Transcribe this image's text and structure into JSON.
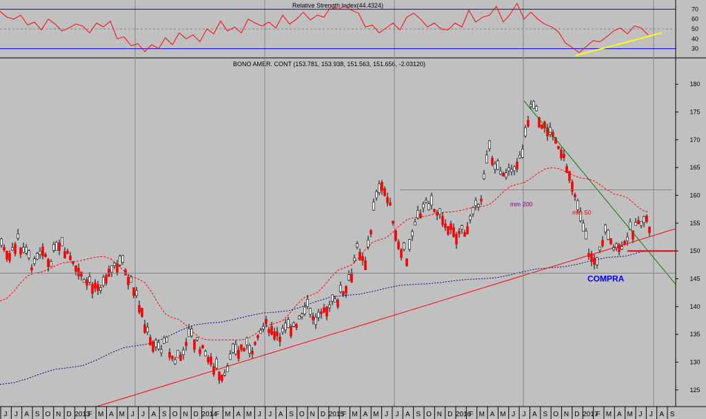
{
  "chart_data": [
    {
      "type": "line",
      "title": "Relative Strength Index(44.4324)",
      "yticks": [
        30,
        40,
        50,
        60,
        70
      ],
      "ylim": [
        22,
        78
      ],
      "reference_lines": [
        30,
        50,
        70
      ],
      "series": [
        {
          "color": "#ff0000",
          "x": [
            0,
            10,
            20,
            30,
            40,
            50,
            60,
            70,
            80,
            90,
            100,
            110,
            120,
            130,
            140,
            150,
            160,
            170,
            180,
            190,
            200,
            210,
            220,
            230,
            240,
            250,
            260,
            270,
            280,
            290,
            300,
            310,
            320,
            330,
            340,
            350,
            360,
            370,
            380,
            390,
            400,
            410,
            420,
            430,
            440,
            450,
            460,
            470,
            480,
            490,
            500,
            510,
            520,
            530,
            540,
            550,
            560,
            570,
            580,
            590,
            600,
            610,
            620,
            630,
            640,
            650,
            660,
            670,
            680,
            690,
            700,
            710,
            720,
            730,
            740,
            750,
            760,
            770,
            780,
            790,
            800,
            810,
            820,
            830,
            840,
            850,
            860,
            870,
            880,
            890,
            900,
            910,
            920,
            930,
            940
          ],
          "values": [
            68,
            62,
            60,
            64,
            54,
            57,
            49,
            60,
            55,
            48,
            51,
            55,
            53,
            46,
            56,
            52,
            58,
            40,
            42,
            33,
            35,
            27,
            34,
            30,
            41,
            34,
            46,
            40,
            44,
            37,
            50,
            45,
            58,
            48,
            52,
            46,
            60,
            56,
            53,
            57,
            51,
            64,
            55,
            60,
            67,
            59,
            64,
            62,
            73,
            70,
            73,
            69,
            66,
            52,
            54,
            46,
            51,
            56,
            49,
            62,
            66,
            60,
            52,
            56,
            50,
            49,
            56,
            52,
            69,
            57,
            62,
            64,
            73,
            57,
            65,
            76,
            60,
            67,
            60,
            55,
            52,
            47,
            36,
            31,
            26,
            32,
            38,
            37,
            42,
            48,
            51,
            45,
            53,
            51,
            44
          ]
        }
      ],
      "annotation_line": {
        "color": "#ffff00",
        "from": [
          835,
          23
        ],
        "to": [
          960,
          46
        ]
      }
    },
    {
      "type": "line",
      "title": "BONO AMER. CONT (153.781, 153.938, 151.563, 151.656, -2.03120)",
      "ylabel": "",
      "ylim": [
        122,
        183
      ],
      "yticks": [
        125,
        130,
        135,
        140,
        145,
        150,
        155,
        160,
        165,
        170,
        175,
        180
      ],
      "xticks": [
        "J",
        "J",
        "A",
        "S",
        "O",
        "N",
        "D",
        "2013",
        "F",
        "M",
        "A",
        "M",
        "J",
        "J",
        "A",
        "S",
        "O",
        "N",
        "D",
        "2014",
        "F",
        "M",
        "A",
        "M",
        "J",
        "J",
        "A",
        "S",
        "O",
        "N",
        "D",
        "2015",
        "F",
        "M",
        "A",
        "M",
        "J",
        "J",
        "A",
        "S",
        "O",
        "N",
        "D",
        "2016",
        "F",
        "M",
        "A",
        "M",
        "J",
        "J",
        "A",
        "S",
        "O",
        "N",
        "D",
        "2017",
        "F",
        "M",
        "A",
        "M",
        "J",
        "J",
        "A",
        "S"
      ],
      "grid": true,
      "series": [
        {
          "name": "price",
          "color": "#000000",
          "up_color": "#ffffff",
          "down_color": "#ff0000",
          "x": [
            0,
            12,
            24,
            36,
            48,
            60,
            72,
            84,
            96,
            108,
            120,
            132,
            144,
            156,
            168,
            180,
            192,
            204,
            216,
            228,
            240,
            252,
            264,
            276,
            288,
            300,
            312,
            324,
            336,
            348,
            360,
            372,
            384,
            396,
            408,
            420,
            432,
            444,
            456,
            468,
            480,
            492,
            504,
            516,
            528,
            540,
            552,
            564,
            576,
            588,
            600,
            612,
            624,
            636,
            648,
            660,
            672,
            684,
            696,
            708,
            720,
            732,
            744,
            756,
            768,
            780,
            792,
            804,
            816,
            828,
            840,
            852,
            864,
            876,
            888,
            900,
            912,
            924,
            936,
            948
          ],
          "values": [
            151,
            150,
            152,
            149,
            147,
            150,
            148,
            152,
            150,
            148,
            145,
            144,
            143,
            146,
            148,
            147,
            144,
            139,
            134,
            132,
            133,
            130,
            132,
            135,
            133,
            131,
            129,
            128,
            131,
            133,
            132,
            134,
            137,
            136,
            135,
            136,
            138,
            140,
            137,
            139,
            141,
            142,
            145,
            150,
            148,
            157,
            163,
            158,
            152,
            149,
            154,
            158,
            158,
            156,
            155,
            153,
            154,
            156,
            160,
            168,
            164,
            163,
            165,
            167,
            176,
            174,
            172,
            170,
            168,
            162,
            155,
            150,
            148,
            153,
            151,
            151,
            153,
            155,
            156,
            152
          ]
        },
        {
          "name": "mm 50",
          "color": "#ff0000",
          "x": [
            0,
            50,
            100,
            150,
            200,
            250,
            300,
            350,
            400,
            450,
            500,
            550,
            600,
            650,
            700,
            750,
            800,
            850,
            900,
            940
          ],
          "values": [
            141,
            146,
            148,
            149,
            145,
            138,
            134,
            134,
            137,
            142,
            147,
            152,
            156,
            157,
            158,
            162,
            165,
            163,
            160,
            157
          ]
        },
        {
          "name": "mm 200",
          "color": "#00008b",
          "x": [
            0,
            100,
            200,
            300,
            400,
            500,
            600,
            700,
            800,
            900,
            940
          ],
          "values": [
            126,
            129,
            133,
            137,
            139,
            142,
            144,
            145,
            147,
            149,
            150
          ]
        }
      ],
      "trendlines": [
        {
          "color": "#ff0000",
          "from": [
            140,
            122
          ],
          "to": [
            980,
            154
          ]
        },
        {
          "color": "#008000",
          "from": [
            760,
            177
          ],
          "to": [
            980,
            144
          ]
        },
        {
          "color": "#ff0000",
          "from": [
            910,
            150
          ],
          "to": [
            980,
            150
          ]
        },
        {
          "color": "#808080",
          "from": [
            580,
            161
          ],
          "to": [
            975,
            161
          ]
        },
        {
          "color": "#808080",
          "from": [
            0,
            146
          ],
          "to": [
            980,
            146
          ]
        }
      ],
      "annotations": [
        {
          "text": "mm 200",
          "color": "#800080",
          "x": 740,
          "y": 158.5
        },
        {
          "text": "mm 50",
          "color": "#ff0000",
          "x": 830,
          "y": 157
        },
        {
          "text": "COMPRA",
          "color": "#0000ff",
          "x": 852,
          "y": 145
        }
      ]
    }
  ]
}
